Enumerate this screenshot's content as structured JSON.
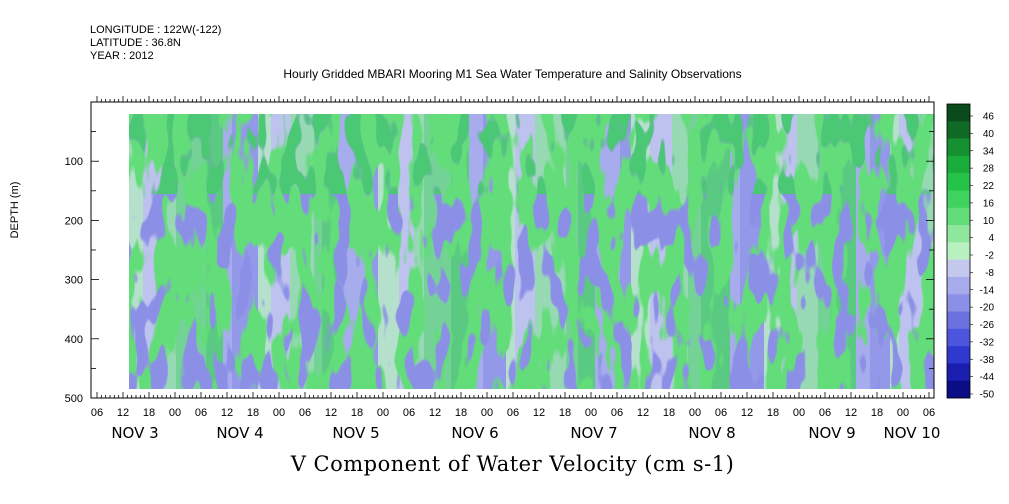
{
  "meta": {
    "longitude": "LONGITUDE : 122W(-122)",
    "latitude": "LATITUDE : 36.8N",
    "year": "YEAR : 2012"
  },
  "chart_data": {
    "type": "heatmap",
    "title": "Hourly Gridded MBARI Mooring M1 Sea Water Temperature and Salinity Observations",
    "ylabel": "DEPTH (m)",
    "xlabel": "V Component of Water Velocity (cm s-1)",
    "y_axis": {
      "reversed": true,
      "ylim": [
        500,
        0
      ],
      "ticks": [
        100,
        200,
        300,
        400,
        500
      ]
    },
    "x_axis": {
      "hour_ticks": [
        "06",
        "12",
        "18",
        "00",
        "06",
        "12",
        "18",
        "00",
        "06",
        "12",
        "18",
        "00",
        "06",
        "12",
        "18",
        "00",
        "06",
        "12",
        "18",
        "00",
        "06",
        "12",
        "18",
        "00",
        "06",
        "12",
        "18",
        "00",
        "06",
        "12",
        "18",
        "00",
        "06"
      ],
      "day_labels": [
        "NOV 3",
        "NOV 4",
        "NOV 5",
        "NOV 6",
        "NOV 7",
        "NOV 8",
        "NOV 9",
        "NOV 10"
      ]
    },
    "colorbar": {
      "labels": [
        "46",
        "40",
        "34",
        "28",
        "22",
        "16",
        "10",
        "4",
        "-2",
        "-8",
        "-14",
        "-20",
        "-26",
        "-32",
        "-38",
        "-44",
        "-50"
      ],
      "colors": [
        "#0b4a1b",
        "#0f6a25",
        "#149030",
        "#1aad3b",
        "#25c449",
        "#3fd25e",
        "#62dd79",
        "#8fe79d",
        "#b8f0c0",
        "#c4c8ef",
        "#a6abec",
        "#8b90e6",
        "#6b72e0",
        "#4c55dc",
        "#2f39cf",
        "#1a1fb0",
        "#0a0d85"
      ]
    },
    "legend": "right",
    "grid": false
  }
}
